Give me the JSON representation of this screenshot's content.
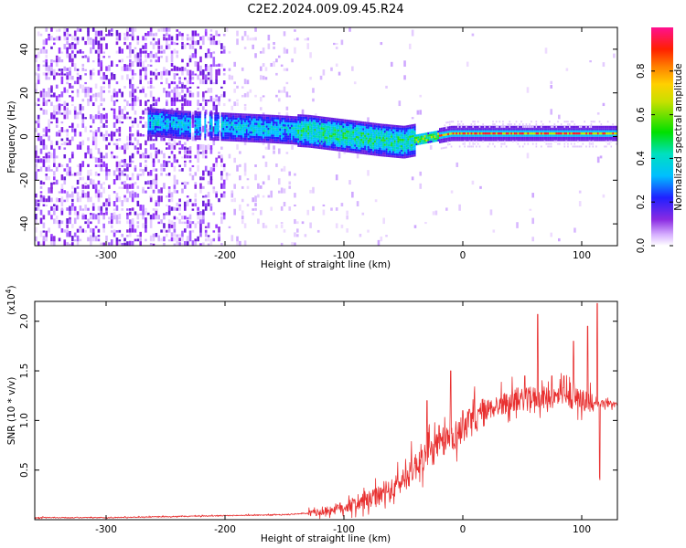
{
  "title": "C2E2.2024.009.09.45.R24",
  "chart_data": [
    {
      "type": "heatmap",
      "xlabel": "Height of straight line (km)",
      "ylabel": "Frequency (Hz)",
      "xlim": [
        -360,
        130
      ],
      "ylim": [
        -50,
        50
      ],
      "xticks": [
        -300,
        -200,
        -100,
        0,
        100
      ],
      "yticks": [
        -40,
        -20,
        0,
        20,
        40
      ],
      "colorbar": {
        "label": "Normalized spectral amplitude",
        "range": [
          0.0,
          1.0
        ],
        "ticks": [
          "0.0",
          "0.2",
          "0.4",
          "0.6",
          "0.8"
        ]
      },
      "signal_center_hz": [
        {
          "x": -260,
          "y": 6
        },
        {
          "x": -240,
          "y": 5
        },
        {
          "x": -200,
          "y": 4
        },
        {
          "x": -160,
          "y": 3
        },
        {
          "x": -130,
          "y": 2
        },
        {
          "x": -100,
          "y": 0
        },
        {
          "x": -70,
          "y": -2
        },
        {
          "x": -50,
          "y": -3
        },
        {
          "x": -30,
          "y": -1
        },
        {
          "x": -10,
          "y": 1
        },
        {
          "x": 0,
          "y": 1
        },
        {
          "x": 50,
          "y": 1
        },
        {
          "x": 100,
          "y": 1
        },
        {
          "x": 130,
          "y": 1
        }
      ],
      "noise_region_x": [
        -360,
        -140
      ]
    },
    {
      "type": "line",
      "xlabel": "Height of straight line (km)",
      "ylabel": "SNR (10 * v/v)",
      "y_multiplier": "(x10",
      "y_multiplier_exp": "4",
      "y_multiplier_close": ")",
      "xlim": [
        -360,
        130
      ],
      "ylim": [
        0.0,
        2.2
      ],
      "xticks": [
        -300,
        -200,
        -100,
        0,
        100
      ],
      "yticks": [
        "0.5",
        "1.0",
        "1.5",
        "2.0"
      ],
      "series": [
        {
          "color": "#e83030",
          "points": [
            [
              -360,
              0.02
            ],
            [
              -300,
              0.02
            ],
            [
              -250,
              0.03
            ],
            [
              -200,
              0.04
            ],
            [
              -150,
              0.05
            ],
            [
              -120,
              0.07
            ],
            [
              -100,
              0.12
            ],
            [
              -80,
              0.18
            ],
            [
              -60,
              0.28
            ],
            [
              -45,
              0.45
            ],
            [
              -35,
              0.6
            ],
            [
              -25,
              0.68
            ],
            [
              -15,
              0.78
            ],
            [
              -5,
              0.85
            ],
            [
              5,
              0.95
            ],
            [
              15,
              1.05
            ],
            [
              25,
              1.12
            ],
            [
              40,
              1.18
            ],
            [
              60,
              1.22
            ],
            [
              80,
              1.22
            ],
            [
              100,
              1.2
            ],
            [
              115,
              1.17
            ],
            [
              130,
              1.16
            ]
          ],
          "spikes": [
            [
              -30,
              1.2
            ],
            [
              -20,
              0.95
            ],
            [
              -10,
              1.5
            ],
            [
              0,
              1.1
            ],
            [
              52,
              1.45
            ],
            [
              63,
              2.07
            ],
            [
              75,
              1.45
            ],
            [
              85,
              1.45
            ],
            [
              93,
              1.8
            ],
            [
              105,
              1.95
            ],
            [
              113,
              2.18
            ]
          ]
        }
      ]
    }
  ]
}
